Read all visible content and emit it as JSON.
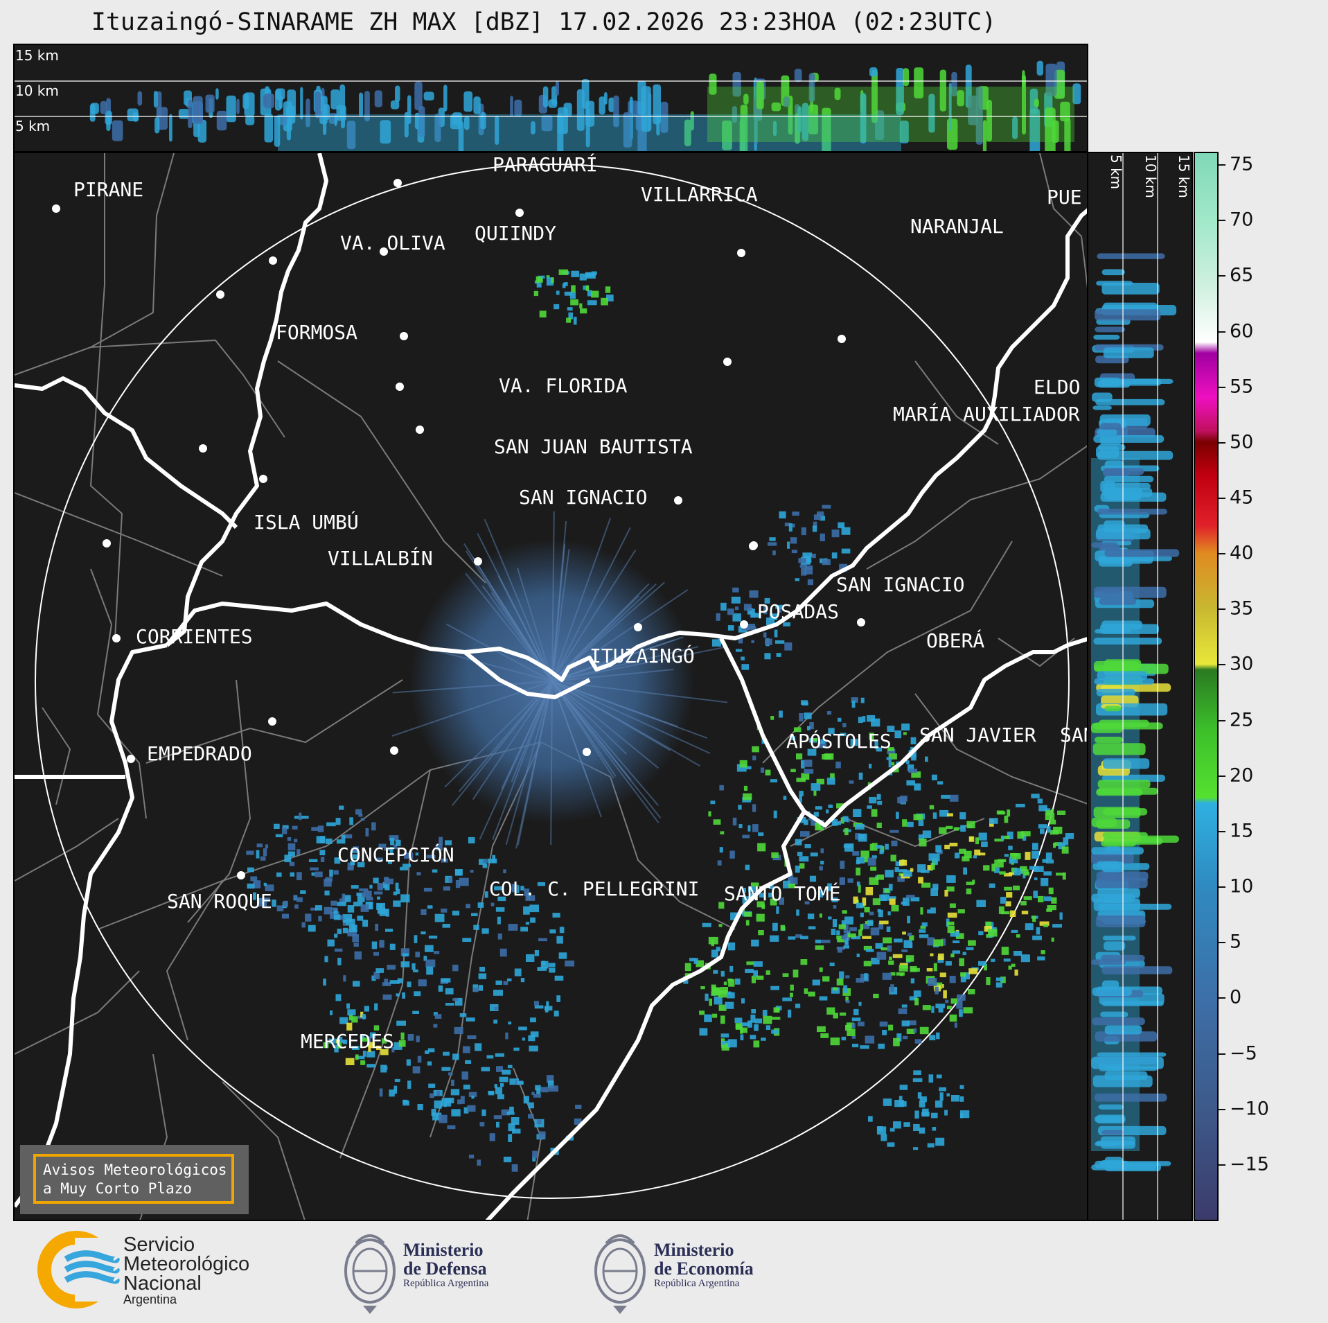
{
  "title": "Ituzaingó-SINARAME ZH MAX [dBZ] 17.02.2026 23:23HOA (02:23UTC)",
  "top_profile": {
    "altitude_labels": [
      "15 km",
      "10 km",
      "5 km"
    ]
  },
  "side_profile": {
    "altitude_labels": [
      "5 km",
      "10 km",
      "15 km"
    ]
  },
  "map": {
    "radar_site": "ITUZAINGÓ",
    "cities": [
      {
        "name": "PIRANE"
      },
      {
        "name": "PARAGUARÍ"
      },
      {
        "name": "VILLARRICA"
      },
      {
        "name": "VA. OLIVA"
      },
      {
        "name": "QUIINDY"
      },
      {
        "name": "NARANJAL"
      },
      {
        "name": "FORMOSA"
      },
      {
        "name": "VA. FLORIDA"
      },
      {
        "name": "ELDO"
      },
      {
        "name": "MARÍA AUXILIADOR"
      },
      {
        "name": "SAN JUAN BAUTISTA"
      },
      {
        "name": "SAN IGNACIO"
      },
      {
        "name": "ISLA UMBÚ"
      },
      {
        "name": "VILLALBÍN"
      },
      {
        "name": "SAN IGNACIO"
      },
      {
        "name": "POSADAS"
      },
      {
        "name": "CORRIENTES"
      },
      {
        "name": "OBERÁ"
      },
      {
        "name": "ITUZAINGÓ"
      },
      {
        "name": "APÓSTOLES"
      },
      {
        "name": "SAN JAVIER"
      },
      {
        "name": "SAN"
      },
      {
        "name": "EMPEDRADO"
      },
      {
        "name": "CONCEPCIÓN"
      },
      {
        "name": "COL. C. PELLEGRINI"
      },
      {
        "name": "SANTO TOMÉ"
      },
      {
        "name": "SAN ROQUE"
      },
      {
        "name": "MERCEDES"
      },
      {
        "name": "PUE"
      }
    ],
    "warning_box": "Avisos Meteorológicos\na Muy Corto Plazo"
  },
  "colorbar": {
    "unit": "dBZ",
    "ticks": [
      "75",
      "70",
      "65",
      "60",
      "55",
      "50",
      "45",
      "40",
      "35",
      "30",
      "25",
      "20",
      "15",
      "10",
      "5",
      "0",
      "−5",
      "−10",
      "−15"
    ],
    "tick_values": [
      75,
      70,
      65,
      60,
      55,
      50,
      45,
      40,
      35,
      30,
      25,
      20,
      15,
      10,
      5,
      0,
      -5,
      -10,
      -15
    ],
    "range": [
      -20,
      76
    ]
  },
  "logos": {
    "smn": {
      "lines": [
        "Servicio",
        "Meteorológico",
        "Nacional"
      ],
      "country": "Argentina"
    },
    "defensa": {
      "title_line1": "Ministerio",
      "title_line2": "de Defensa",
      "subtitle": "República Argentina"
    },
    "economia": {
      "title_line1": "Ministerio",
      "title_line2": "de Economía",
      "subtitle": "República Argentina"
    }
  },
  "colors": {
    "background": "#1b1b1b",
    "warning_border": "#f0a500",
    "river": "#ffffff",
    "boundary": "#7a7a7a",
    "echo_blue": "#3d6fa8",
    "echo_cyan": "#2fa6d8",
    "echo_green": "#4fd83a",
    "echo_yellow": "#e8e23a"
  }
}
